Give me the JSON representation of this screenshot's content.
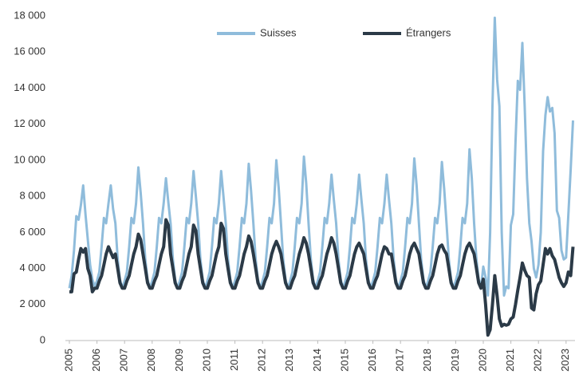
{
  "chart_data": {
    "type": "line",
    "categories": [
      "2005",
      null,
      null,
      null,
      null,
      null,
      null,
      null,
      null,
      null,
      null,
      null,
      "2006",
      null,
      null,
      null,
      null,
      null,
      null,
      null,
      null,
      null,
      null,
      null,
      "2007",
      null,
      null,
      null,
      null,
      null,
      null,
      null,
      null,
      null,
      null,
      null,
      "2008",
      null,
      null,
      null,
      null,
      null,
      null,
      null,
      null,
      null,
      null,
      null,
      "2009",
      null,
      null,
      null,
      null,
      null,
      null,
      null,
      null,
      null,
      null,
      null,
      "2010",
      null,
      null,
      null,
      null,
      null,
      null,
      null,
      null,
      null,
      null,
      null,
      "2011",
      null,
      null,
      null,
      null,
      null,
      null,
      null,
      null,
      null,
      null,
      null,
      "2012",
      null,
      null,
      null,
      null,
      null,
      null,
      null,
      null,
      null,
      null,
      null,
      "2013",
      null,
      null,
      null,
      null,
      null,
      null,
      null,
      null,
      null,
      null,
      null,
      "2014",
      null,
      null,
      null,
      null,
      null,
      null,
      null,
      null,
      null,
      null,
      null,
      "2015",
      null,
      null,
      null,
      null,
      null,
      null,
      null,
      null,
      null,
      null,
      null,
      "2016",
      null,
      null,
      null,
      null,
      null,
      null,
      null,
      null,
      null,
      null,
      null,
      "2017",
      null,
      null,
      null,
      null,
      null,
      null,
      null,
      null,
      null,
      null,
      null,
      "2018",
      null,
      null,
      null,
      null,
      null,
      null,
      null,
      null,
      null,
      null,
      null,
      "2019",
      null,
      null,
      null,
      null,
      null,
      null,
      null,
      null,
      null,
      null,
      null,
      "2020",
      null,
      null,
      null,
      null,
      null,
      null,
      null,
      null,
      null,
      null,
      null,
      "2021",
      null,
      null,
      null,
      null,
      null,
      null,
      null,
      null,
      null,
      null,
      null,
      "2022",
      null,
      null,
      null,
      null,
      null,
      null,
      null,
      null,
      null,
      null,
      null,
      "2023",
      null,
      null,
      null
    ],
    "series": [
      {
        "name": "Suisses",
        "color": "#8fbcdb",
        "values": [
          2900,
          3600,
          5000,
          6900,
          6700,
          7500,
          8600,
          7000,
          5600,
          4200,
          3400,
          3000,
          3300,
          3800,
          5200,
          6800,
          6500,
          7600,
          8600,
          7300,
          6500,
          4500,
          3400,
          2900,
          3300,
          3800,
          5200,
          6800,
          6500,
          7600,
          9600,
          8200,
          6500,
          4500,
          3400,
          2900,
          3300,
          3800,
          5200,
          6800,
          6500,
          7600,
          9000,
          7700,
          6500,
          4500,
          3400,
          2900,
          3300,
          3800,
          5200,
          6800,
          6500,
          7600,
          9400,
          8000,
          6500,
          4500,
          3400,
          2900,
          3300,
          3800,
          5200,
          6800,
          6500,
          7600,
          9400,
          8000,
          6500,
          4500,
          3400,
          2900,
          3300,
          3800,
          5200,
          6800,
          6500,
          7600,
          9800,
          8300,
          6500,
          4500,
          3400,
          2900,
          3300,
          3800,
          5200,
          6800,
          6500,
          7600,
          10000,
          8500,
          6500,
          4500,
          3400,
          2900,
          3300,
          3800,
          5200,
          6800,
          6500,
          7600,
          10200,
          8700,
          6500,
          4500,
          3400,
          2900,
          3300,
          3800,
          5200,
          6800,
          6500,
          7600,
          9200,
          7800,
          6500,
          4500,
          3400,
          2900,
          3300,
          3800,
          5200,
          6800,
          6500,
          7600,
          9200,
          7800,
          6500,
          4500,
          3400,
          2900,
          3300,
          3800,
          5200,
          6800,
          6500,
          7600,
          9200,
          7800,
          6500,
          4500,
          3400,
          2900,
          3300,
          3800,
          5200,
          6800,
          6500,
          7600,
          10100,
          8600,
          6500,
          4500,
          3400,
          2900,
          3300,
          3800,
          5200,
          6800,
          6500,
          7600,
          9900,
          8400,
          6500,
          4500,
          3400,
          2900,
          3300,
          3800,
          5200,
          6800,
          6500,
          7600,
          10600,
          9000,
          6500,
          4500,
          3400,
          2900,
          4100,
          3500,
          2500,
          6000,
          13000,
          17900,
          14500,
          13000,
          6000,
          2500,
          3000,
          2900,
          6400,
          7000,
          11000,
          14400,
          13900,
          16500,
          13000,
          9000,
          6500,
          5500,
          4000,
          3500,
          4200,
          6000,
          10500,
          12500,
          13500,
          12700,
          12900,
          11500,
          7200,
          6800,
          5000,
          4500,
          4600,
          7000,
          9500,
          12200
        ]
      },
      {
        "name": "Étrangers",
        "color": "#2b3a47",
        "values": [
          2700,
          2700,
          3700,
          3800,
          4500,
          5100,
          4900,
          5100,
          4000,
          3600,
          2700,
          2900,
          2900,
          3300,
          3600,
          4200,
          4800,
          5200,
          4900,
          4600,
          4800,
          4000,
          3200,
          2900,
          2900,
          3300,
          3600,
          4200,
          4800,
          5200,
          5900,
          5600,
          4800,
          4000,
          3200,
          2900,
          2900,
          3300,
          3600,
          4200,
          4800,
          5200,
          6700,
          6400,
          4800,
          4000,
          3200,
          2900,
          2900,
          3300,
          3600,
          4200,
          4800,
          5200,
          6400,
          6100,
          4800,
          4000,
          3200,
          2900,
          2900,
          3300,
          3600,
          4200,
          4800,
          5200,
          6500,
          6200,
          4800,
          4000,
          3200,
          2900,
          2900,
          3300,
          3600,
          4200,
          4800,
          5200,
          5800,
          5500,
          4800,
          4000,
          3200,
          2900,
          2900,
          3300,
          3600,
          4200,
          4800,
          5200,
          5500,
          5200,
          4800,
          4000,
          3200,
          2900,
          2900,
          3300,
          3600,
          4200,
          4800,
          5200,
          5700,
          5400,
          4800,
          4000,
          3200,
          2900,
          2900,
          3300,
          3600,
          4200,
          4800,
          5200,
          5700,
          5400,
          4800,
          4000,
          3200,
          2900,
          2900,
          3300,
          3600,
          4200,
          4800,
          5200,
          5400,
          5100,
          4800,
          4000,
          3200,
          2900,
          2900,
          3300,
          3600,
          4200,
          4800,
          5200,
          5100,
          4800,
          4800,
          4000,
          3200,
          2900,
          2900,
          3300,
          3600,
          4200,
          4800,
          5200,
          5400,
          5100,
          4800,
          4000,
          3200,
          2900,
          2900,
          3300,
          3600,
          4200,
          4800,
          5200,
          5300,
          5000,
          4800,
          4000,
          3200,
          2900,
          2900,
          3300,
          3600,
          4200,
          4800,
          5200,
          5400,
          5100,
          4800,
          4000,
          3200,
          2900,
          3400,
          2000,
          300,
          600,
          2000,
          3600,
          2500,
          1200,
          800,
          900,
          850,
          900,
          1200,
          1300,
          2000,
          2800,
          3500,
          4300,
          3900,
          3600,
          3500,
          1800,
          1700,
          2600,
          3100,
          3300,
          4200,
          5100,
          4800,
          5100,
          4700,
          4500,
          4000,
          3500,
          3200,
          3000,
          3200,
          3800,
          3600,
          5200
        ]
      }
    ],
    "ylim": [
      0,
      18000
    ],
    "yticks": [
      0,
      {
        "value": 2000,
        "label": "2 000"
      },
      {
        "value": 4000,
        "label": "4 000"
      },
      {
        "value": 6000,
        "label": "6 000"
      },
      {
        "value": 8000,
        "label": "8 000"
      },
      {
        "value": 10000,
        "label": "10 000"
      },
      {
        "value": 12000,
        "label": "12 000"
      },
      {
        "value": 14000,
        "label": "14 000"
      },
      {
        "value": 16000,
        "label": "16 000"
      },
      {
        "value": 18000,
        "label": "18 000"
      }
    ],
    "grid": false,
    "legend": "top"
  }
}
